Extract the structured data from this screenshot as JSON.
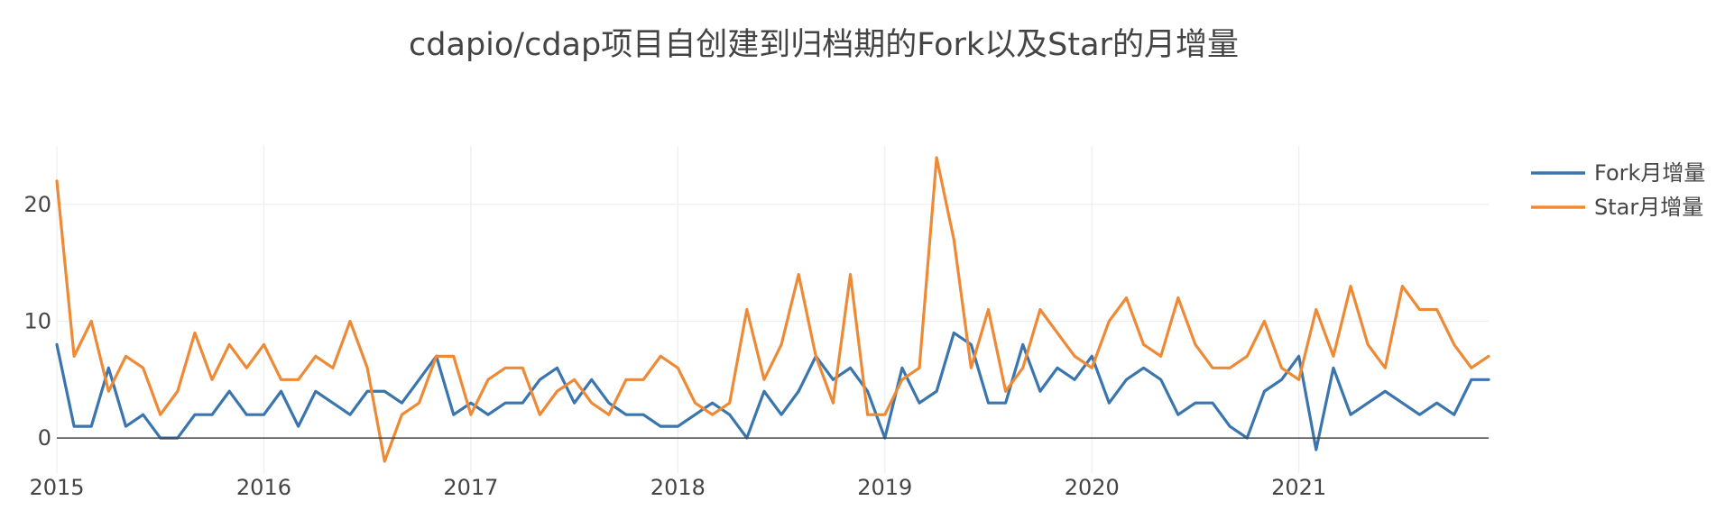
{
  "chart_data": {
    "type": "line",
    "title": "cdapio/cdap项目自创建到归档期的Fork以及Star的月增量",
    "xlabel": "",
    "ylabel": "",
    "x_start": "2015-01",
    "x_end": "2021-12",
    "xlim": [
      "2015-01",
      "2021-12"
    ],
    "ylim": [
      -3,
      25
    ],
    "x_ticks": [
      "2015",
      "2016",
      "2017",
      "2018",
      "2019",
      "2020",
      "2021"
    ],
    "y_ticks": [
      0,
      10,
      20
    ],
    "grid": true,
    "legend_position": "right",
    "series": [
      {
        "name": "Fork月增量",
        "color": "#3a75ae",
        "values": [
          8,
          1,
          1,
          6,
          1,
          2,
          0,
          0,
          2,
          2,
          4,
          2,
          2,
          4,
          1,
          4,
          3,
          2,
          4,
          4,
          3,
          5,
          7,
          2,
          3,
          2,
          3,
          3,
          5,
          6,
          3,
          5,
          3,
          2,
          2,
          1,
          1,
          2,
          3,
          2,
          0,
          4,
          2,
          4,
          7,
          5,
          6,
          4,
          0,
          6,
          3,
          4,
          9,
          8,
          3,
          3,
          8,
          4,
          6,
          5,
          7,
          3,
          5,
          6,
          5,
          2,
          3,
          3,
          1,
          0,
          4,
          5,
          7,
          -1,
          6,
          2,
          3,
          4,
          3,
          2,
          3,
          2,
          5,
          5
        ]
      },
      {
        "name": "Star月增量",
        "color": "#ee8a36",
        "values": [
          22,
          7,
          10,
          4,
          7,
          6,
          2,
          4,
          9,
          5,
          8,
          6,
          8,
          5,
          5,
          7,
          6,
          10,
          6,
          -2,
          2,
          3,
          7,
          7,
          2,
          5,
          6,
          6,
          2,
          4,
          5,
          3,
          2,
          5,
          5,
          7,
          6,
          3,
          2,
          3,
          11,
          5,
          8,
          14,
          7,
          3,
          14,
          2,
          2,
          5,
          6,
          24,
          17,
          6,
          11,
          4,
          6,
          11,
          9,
          7,
          6,
          10,
          12,
          8,
          7,
          12,
          8,
          6,
          6,
          7,
          10,
          6,
          5,
          11,
          7,
          13,
          8,
          6,
          13,
          11,
          11,
          8,
          6,
          7
        ]
      }
    ]
  }
}
